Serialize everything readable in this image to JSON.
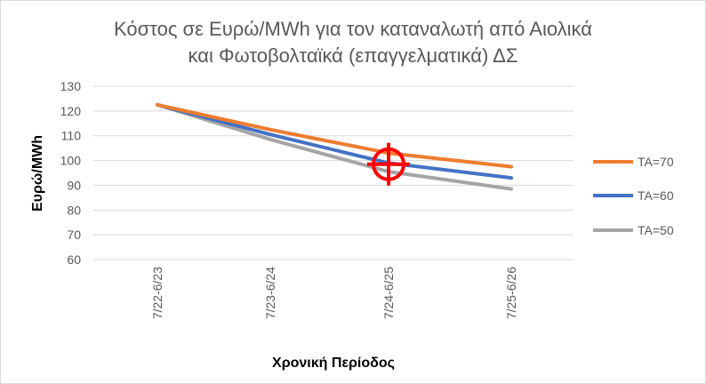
{
  "chart_data": {
    "type": "line",
    "title_line1": "Κόστος σε Ευρώ/MWh για τον καταναλωτή από Αιολικά",
    "title_line2": "και Φωτοβολταϊκά (επαγγελματικά) ΔΣ",
    "xlabel": "Χρονική Περίοδος",
    "ylabel": "Ευρώ/MWh",
    "categories": [
      "7/22-6/23",
      "7/23-6/24",
      "7/24-6/25",
      "7/25-6/26"
    ],
    "yticks": [
      "60",
      "70",
      "80",
      "90",
      "100",
      "110",
      "120",
      "130"
    ],
    "ylim": [
      60,
      130
    ],
    "grid": "horizontal",
    "legend_position": "right",
    "series": [
      {
        "name": "TA=70",
        "color": "#ED7D31",
        "values": [
          122.5,
          112.5,
          103,
          97.5
        ]
      },
      {
        "name": "TA=60",
        "color": "#4472C4",
        "values": [
          122.5,
          110.5,
          99,
          93
        ]
      },
      {
        "name": "TA=50",
        "color": "#A5A5A5",
        "values": [
          122.5,
          108.5,
          95.5,
          88.5
        ]
      }
    ],
    "annotation": {
      "type": "crosshair-marker",
      "color": "#FF0000",
      "category_index": 2,
      "value": 98.5
    }
  }
}
